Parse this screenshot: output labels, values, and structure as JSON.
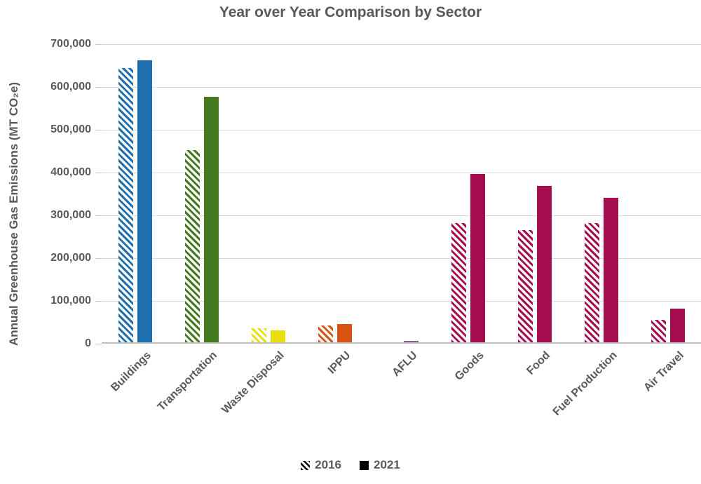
{
  "chart_data": {
    "type": "bar",
    "title": "Year over Year Comparison by Sector",
    "ylabel": "Annual Greenhouse Gas Emissions (MT CO₂e)",
    "categories": [
      "Buildings",
      "Transportation",
      "Waste Disposal",
      "IPPU",
      "AFLU",
      "Goods",
      "Food",
      "Fuel Production",
      "Air Travel"
    ],
    "series": [
      {
        "name": "2016",
        "style": "hatched",
        "values": [
          641000,
          450000,
          32000,
          40000,
          0,
          278000,
          263000,
          278000,
          53000
        ]
      },
      {
        "name": "2021",
        "style": "solid",
        "values": [
          659000,
          573000,
          28000,
          43000,
          4000,
          394000,
          365000,
          338000,
          78000
        ]
      }
    ],
    "category_colors": [
      "#1F6FAE",
      "#44791E",
      "#E8DE0E",
      "#D85212",
      "#9455A1",
      "#A50D51",
      "#A50D51",
      "#A50D51",
      "#A50D51"
    ],
    "ylim": [
      0,
      700000
    ],
    "ytick_step": 100000,
    "ytick_labels": [
      "0",
      "100,000",
      "200,000",
      "300,000",
      "400,000",
      "500,000",
      "600,000",
      "700,000"
    ],
    "grid": true,
    "legend_position": "bottom",
    "colors": {
      "text": "#595959",
      "gridline": "#D9D9D9",
      "axis_line": "#BFBFBF",
      "legend_swatch": "#000000"
    }
  },
  "legend": {
    "items": [
      {
        "label": "2016",
        "swatch": "hatched"
      },
      {
        "label": "2021",
        "swatch": "solid"
      }
    ]
  }
}
